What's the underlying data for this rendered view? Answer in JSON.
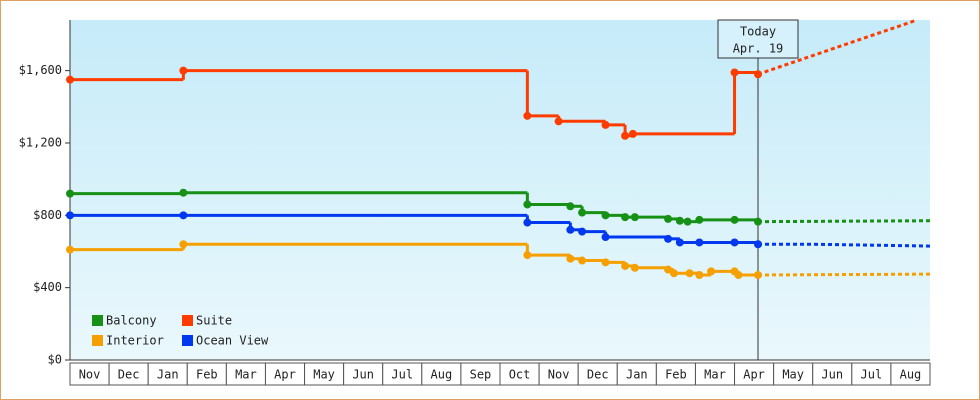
{
  "chart_data": {
    "type": "step-line",
    "categories": [
      "Nov",
      "Dec",
      "Jan",
      "Feb",
      "Mar",
      "Apr",
      "May",
      "Jun",
      "Jul",
      "Aug",
      "Sep",
      "Oct",
      "Nov",
      "Dec",
      "Jan",
      "Feb",
      "Mar",
      "Apr",
      "May",
      "Jun",
      "Jul",
      "Aug"
    ],
    "xlim": [
      0,
      22
    ],
    "ylim": [
      0,
      1880
    ],
    "yticks": [
      {
        "value": 0,
        "label": "$0"
      },
      {
        "value": 400,
        "label": "$400"
      },
      {
        "value": 800,
        "label": "$800"
      },
      {
        "value": 1200,
        "label": "$1,200"
      },
      {
        "value": 1600,
        "label": "$1,600"
      }
    ],
    "legend": "lower left",
    "annotation": {
      "x": 17.6,
      "lines": [
        "Today",
        "Apr. 19"
      ]
    },
    "series": [
      {
        "name": "Balcony",
        "color": "#169116",
        "x": [
          0,
          2.9,
          11.7,
          12.8,
          13.1,
          13.7,
          14.2,
          14.45,
          15.3,
          15.6,
          15.8,
          16.1,
          17.0,
          17.6
        ],
        "values": [
          920,
          925,
          860,
          850,
          815,
          800,
          790,
          790,
          780,
          770,
          765,
          775,
          775,
          765
        ],
        "forecast_x": [
          17.6,
          22
        ],
        "forecast_values": [
          765,
          770
        ]
      },
      {
        "name": "Suite",
        "color": "#ff3c00",
        "x": [
          0,
          2.9,
          11.7,
          12.5,
          13.7,
          14.2,
          14.4,
          17.0,
          17.6
        ],
        "values": [
          1550,
          1600,
          1350,
          1320,
          1300,
          1240,
          1250,
          1590,
          1580
        ],
        "forecast_x": [
          17.6,
          21.6
        ],
        "forecast_values": [
          1580,
          1875
        ]
      },
      {
        "name": "Interior",
        "color": "#f5a000",
        "x": [
          0,
          2.9,
          11.7,
          12.8,
          13.1,
          13.7,
          14.2,
          14.45,
          15.3,
          15.45,
          15.85,
          16.1,
          16.4,
          17.0,
          17.1,
          17.6
        ],
        "values": [
          610,
          640,
          580,
          560,
          550,
          540,
          520,
          510,
          500,
          480,
          480,
          470,
          490,
          490,
          470,
          470
        ],
        "forecast_x": [
          17.6,
          22
        ],
        "forecast_values": [
          470,
          475
        ]
      },
      {
        "name": "Ocean View",
        "color": "#0038f0",
        "x": [
          0,
          2.9,
          11.7,
          12.8,
          13.1,
          13.7,
          15.3,
          15.6,
          16.1,
          17.0,
          17.6
        ],
        "values": [
          800,
          800,
          760,
          720,
          710,
          680,
          670,
          650,
          650,
          650,
          640
        ],
        "forecast_x": [
          17.6,
          19,
          22
        ],
        "forecast_values": [
          640,
          640,
          630
        ]
      }
    ]
  }
}
